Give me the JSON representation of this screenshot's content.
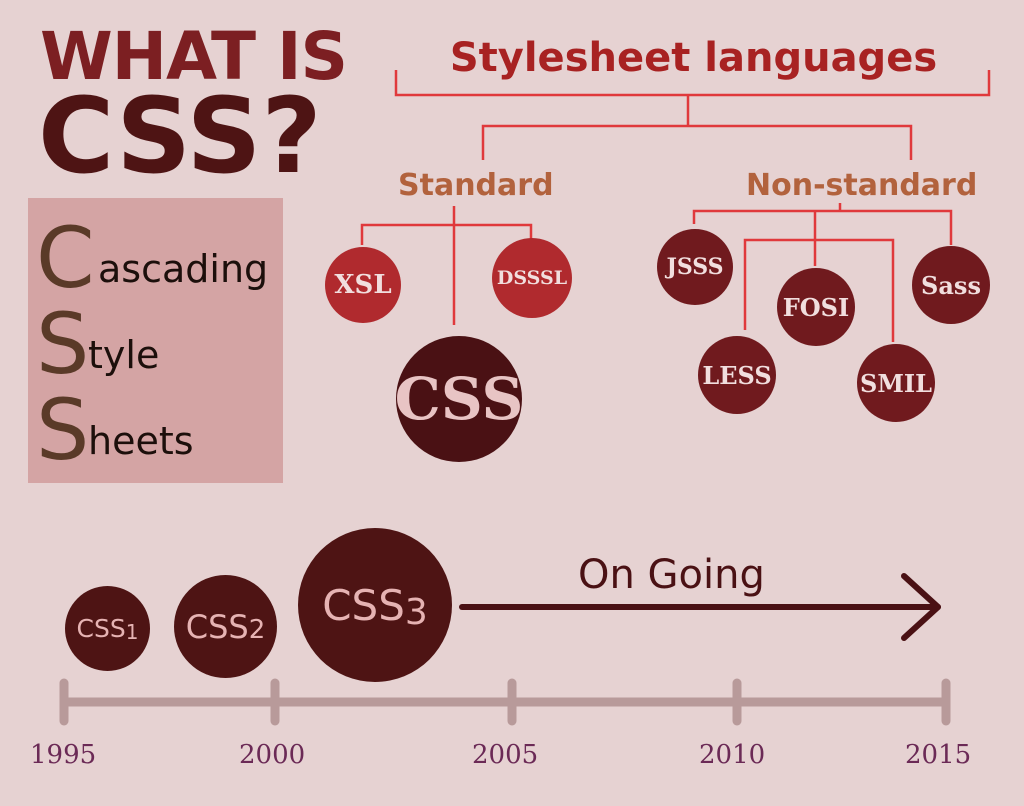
{
  "title": {
    "line1": "WHAT IS",
    "line2": "CSS?"
  },
  "acronym": [
    {
      "letter": "C",
      "rest": "ascading"
    },
    {
      "letter": "S",
      "rest": "tyle"
    },
    {
      "letter": "S",
      "rest": "heets"
    }
  ],
  "diagram": {
    "heading": "Stylesheet languages",
    "standard": {
      "label": "Standard",
      "items": [
        "XSL",
        "DSSSL",
        "CSS"
      ]
    },
    "non_standard": {
      "label": "Non-standard",
      "items": [
        "JSSS",
        "FOSI",
        "Sass",
        "LESS",
        "SMIL"
      ]
    }
  },
  "timeline": {
    "versions": [
      {
        "name": "CSS",
        "num": "1"
      },
      {
        "name": "CSS",
        "num": "2"
      },
      {
        "name": "CSS",
        "num": "3"
      }
    ],
    "ongoing_label": "On Going",
    "years": [
      "1995",
      "2000",
      "2005",
      "2010",
      "2015"
    ]
  },
  "colors": {
    "background": "#e6d2d2",
    "connector": "#e0393c",
    "timeline_bar": "#b89a9a",
    "dark_bubble": "#4e1414"
  }
}
